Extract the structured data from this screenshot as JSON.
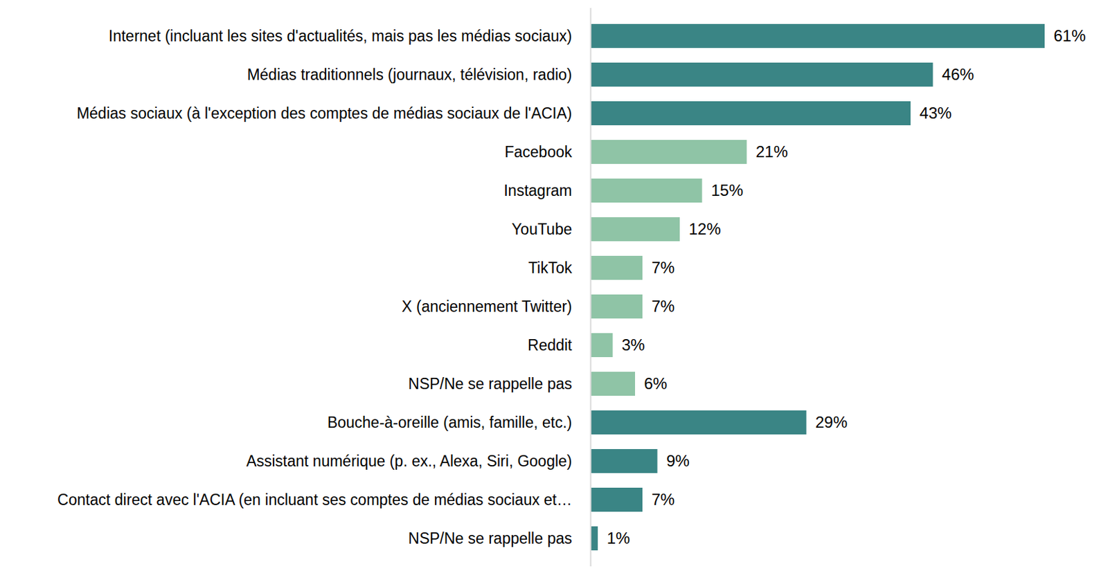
{
  "chart_data": {
    "type": "bar",
    "orientation": "horizontal",
    "categories": [
      "Internet (incluant les sites d'actualités, mais pas les médias sociaux)",
      "Médias traditionnels (journaux, télévision, radio)",
      "Médias sociaux (à l'exception des comptes de médias sociaux de l'ACIA)",
      "Facebook",
      "Instagram",
      "YouTube",
      "TikTok",
      "X (anciennement Twitter)",
      "Reddit",
      "NSP/Ne se rappelle pas",
      "Bouche-à-oreille (amis, famille, etc.)",
      "Assistant numérique (p. ex., Alexa, Siri, Google)",
      "Contact direct avec l'ACIA (en incluant ses comptes de médias sociaux et…",
      "NSP/Ne se rappelle pas"
    ],
    "values": [
      61,
      46,
      43,
      21,
      15,
      12,
      7,
      7,
      3,
      6,
      29,
      9,
      7,
      1
    ],
    "value_labels": [
      "61%",
      "46%",
      "43%",
      "21%",
      "15%",
      "12%",
      "7%",
      "7%",
      "3%",
      "6%",
      "29%",
      "9%",
      "7%",
      "1%"
    ],
    "colors": [
      "#3a8585",
      "#3a8585",
      "#3a8585",
      "#8fc4a6",
      "#8fc4a6",
      "#8fc4a6",
      "#8fc4a6",
      "#8fc4a6",
      "#8fc4a6",
      "#8fc4a6",
      "#3a8585",
      "#3a8585",
      "#3a8585",
      "#3a8585"
    ],
    "xlim": [
      0,
      61
    ],
    "data_labels": true,
    "tick_labels": "y",
    "grid": false
  }
}
